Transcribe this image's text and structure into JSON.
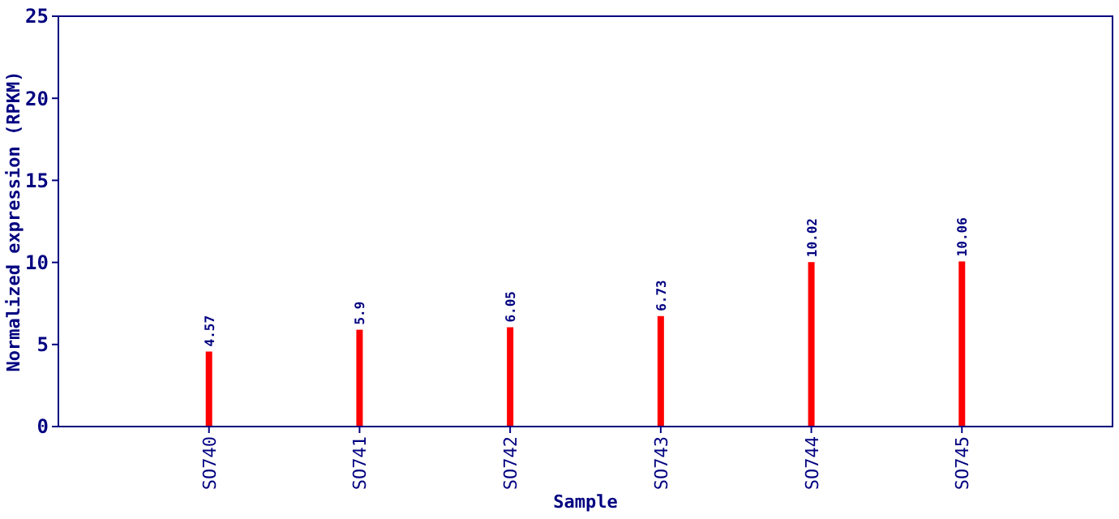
{
  "chart_data": {
    "type": "bar",
    "xlabel": "Sample",
    "ylabel": "Normalized expression (RPKM)",
    "categories": [
      "SO740",
      "SO741",
      "SO742",
      "SO743",
      "SO744",
      "SO745"
    ],
    "values": [
      4.57,
      5.9,
      6.05,
      6.73,
      10.02,
      10.06
    ],
    "color": "#ff0000",
    "ylim": [
      0,
      25
    ],
    "yticks": [
      0,
      5,
      10,
      15,
      20,
      25
    ],
    "data_labels": true,
    "grid": false
  }
}
